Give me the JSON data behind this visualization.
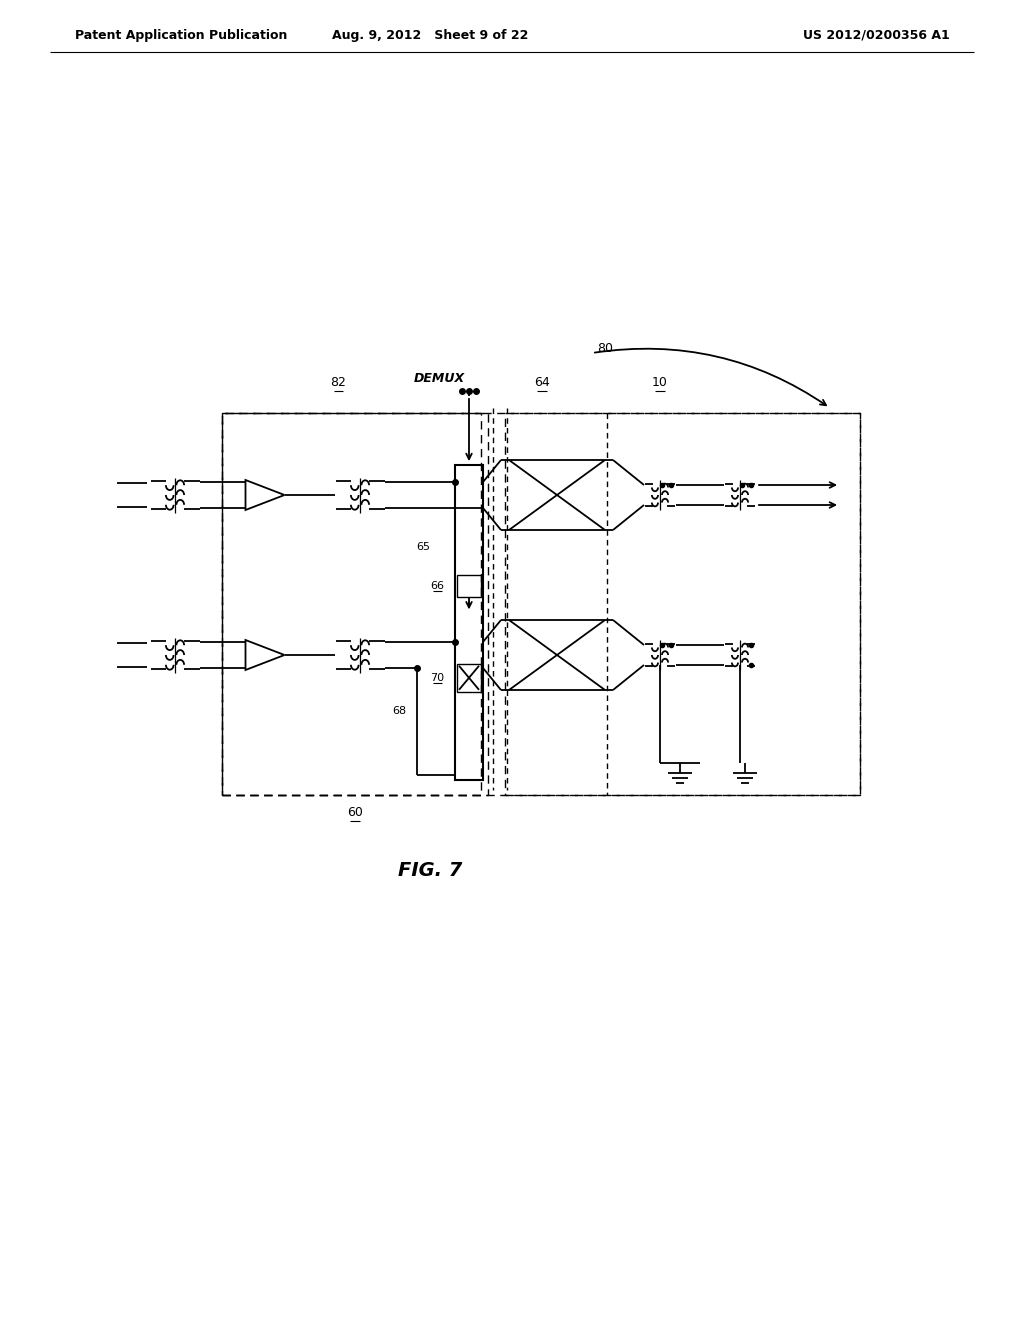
{
  "header_left": "Patent Application Publication",
  "header_mid": "Aug. 9, 2012   Sheet 9 of 22",
  "header_right": "US 2012/0200356 A1",
  "fig_label": "FIG. 7",
  "bg_color": "#ffffff",
  "line_color": "#000000",
  "label_80": "80",
  "label_82": "82",
  "label_60": "60",
  "label_64": "64",
  "label_10": "10",
  "label_65": "65",
  "label_66": "66",
  "label_68": "68",
  "label_70": "70",
  "label_demux": "DEMUX"
}
